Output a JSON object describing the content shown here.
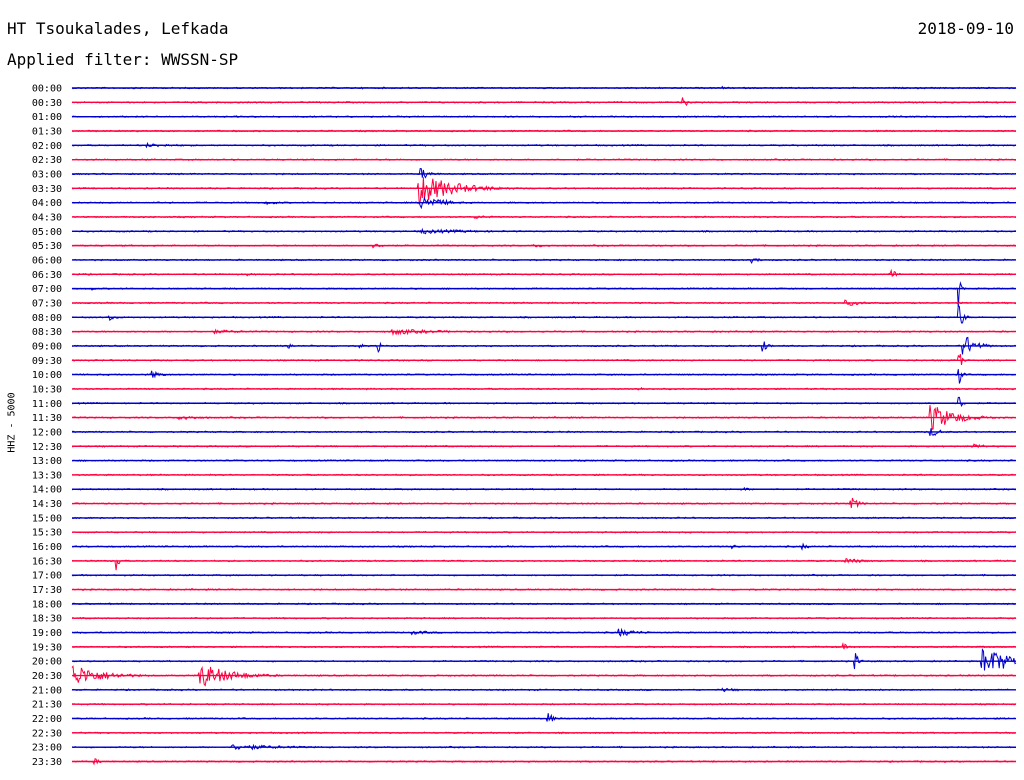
{
  "header": {
    "station": "HT Tsoukalades, Lefkada",
    "date": "2018-09-10",
    "filter": "Applied filter: WWSSN-SP"
  },
  "chart_data": {
    "type": "line",
    "title": "HT Tsoukalades, Lefkada",
    "ylabel": "HHZ - 5000",
    "xlabel": "",
    "colors": {
      "even_rows": "#0000cc",
      "odd_rows": "#ff0040"
    },
    "rows": [
      {
        "label": "00:00",
        "events": [
          {
            "pos": 0.69,
            "amp": 1.5,
            "dur": 0.004
          }
        ]
      },
      {
        "label": "00:30",
        "events": [
          {
            "pos": 0.648,
            "amp": 5,
            "dur": 0.006
          }
        ]
      },
      {
        "label": "01:00",
        "events": []
      },
      {
        "label": "01:30",
        "events": []
      },
      {
        "label": "02:00",
        "events": [
          {
            "pos": 0.08,
            "amp": 2,
            "dur": 0.04
          }
        ]
      },
      {
        "label": "02:30",
        "events": []
      },
      {
        "label": "03:00",
        "events": [
          {
            "pos": 0.37,
            "amp": 6,
            "dur": 0.01
          }
        ]
      },
      {
        "label": "03:30",
        "events": [
          {
            "pos": 0.368,
            "amp": 16,
            "dur": 0.035
          }
        ]
      },
      {
        "label": "04:00",
        "events": [
          {
            "pos": 0.37,
            "amp": 8,
            "dur": 0.02
          },
          {
            "pos": 0.205,
            "amp": 2,
            "dur": 0.02
          }
        ]
      },
      {
        "label": "04:30",
        "events": [
          {
            "pos": 0.425,
            "amp": 2,
            "dur": 0.02
          }
        ]
      },
      {
        "label": "05:00",
        "events": [
          {
            "pos": 0.37,
            "amp": 2.5,
            "dur": 0.06
          }
        ]
      },
      {
        "label": "05:30",
        "events": [
          {
            "pos": 0.32,
            "amp": 2,
            "dur": 0.02
          },
          {
            "pos": 0.49,
            "amp": 1.5,
            "dur": 0.03
          }
        ]
      },
      {
        "label": "06:00",
        "events": [
          {
            "pos": 0.72,
            "amp": 3,
            "dur": 0.01
          }
        ]
      },
      {
        "label": "06:30",
        "events": [
          {
            "pos": 0.867,
            "amp": 6,
            "dur": 0.006
          },
          {
            "pos": 0.185,
            "amp": 1.5,
            "dur": 0.01
          }
        ]
      },
      {
        "label": "07:00",
        "events": [
          {
            "pos": 0.94,
            "amp": 20,
            "dur": 0.002
          },
          {
            "pos": 0.02,
            "amp": 2,
            "dur": 0.005
          }
        ]
      },
      {
        "label": "07:30",
        "events": [
          {
            "pos": 0.82,
            "amp": 3,
            "dur": 0.02
          }
        ]
      },
      {
        "label": "08:00",
        "events": [
          {
            "pos": 0.94,
            "amp": 14,
            "dur": 0.004
          },
          {
            "pos": 0.04,
            "amp": 4,
            "dur": 0.006
          }
        ]
      },
      {
        "label": "08:30",
        "events": [
          {
            "pos": 0.34,
            "amp": 3,
            "dur": 0.05
          },
          {
            "pos": 0.15,
            "amp": 2,
            "dur": 0.04
          }
        ]
      },
      {
        "label": "09:00",
        "events": [
          {
            "pos": 0.945,
            "amp": 12,
            "dur": 0.012
          },
          {
            "pos": 0.228,
            "amp": 8,
            "dur": 0.003
          },
          {
            "pos": 0.732,
            "amp": 7,
            "dur": 0.005
          },
          {
            "pos": 0.325,
            "amp": 6,
            "dur": 0.002
          },
          {
            "pos": 0.305,
            "amp": 3,
            "dur": 0.004
          }
        ]
      },
      {
        "label": "09:30",
        "events": [
          {
            "pos": 0.94,
            "amp": 10,
            "dur": 0.003
          }
        ]
      },
      {
        "label": "10:00",
        "events": [
          {
            "pos": 0.085,
            "amp": 4,
            "dur": 0.01
          },
          {
            "pos": 0.94,
            "amp": 10,
            "dur": 0.003
          }
        ]
      },
      {
        "label": "10:30",
        "events": [
          {
            "pos": 0.6,
            "amp": 2,
            "dur": 0.01
          }
        ]
      },
      {
        "label": "11:00",
        "events": [
          {
            "pos": 0.94,
            "amp": 8,
            "dur": 0.003
          }
        ]
      },
      {
        "label": "11:30",
        "events": [
          {
            "pos": 0.91,
            "amp": 14,
            "dur": 0.025
          },
          {
            "pos": 0.115,
            "amp": 3,
            "dur": 0.02
          }
        ]
      },
      {
        "label": "12:00",
        "events": [
          {
            "pos": 0.91,
            "amp": 5,
            "dur": 0.01
          }
        ]
      },
      {
        "label": "12:30",
        "events": [
          {
            "pos": 0.955,
            "amp": 3,
            "dur": 0.012
          }
        ]
      },
      {
        "label": "13:00",
        "events": []
      },
      {
        "label": "13:30",
        "events": []
      },
      {
        "label": "14:00",
        "events": [
          {
            "pos": 0.71,
            "amp": 2,
            "dur": 0.01
          }
        ]
      },
      {
        "label": "14:30",
        "events": [
          {
            "pos": 0.826,
            "amp": 6,
            "dur": 0.008
          }
        ]
      },
      {
        "label": "15:00",
        "events": []
      },
      {
        "label": "15:30",
        "events": []
      },
      {
        "label": "16:00",
        "events": [
          {
            "pos": 0.7,
            "amp": 2,
            "dur": 0.01
          },
          {
            "pos": 0.775,
            "amp": 3,
            "dur": 0.006
          }
        ]
      },
      {
        "label": "16:30",
        "events": [
          {
            "pos": 0.048,
            "amp": 12,
            "dur": 0.002
          },
          {
            "pos": 0.82,
            "amp": 3,
            "dur": 0.02
          }
        ]
      },
      {
        "label": "17:00",
        "events": []
      },
      {
        "label": "17:30",
        "events": []
      },
      {
        "label": "18:00",
        "events": []
      },
      {
        "label": "18:30",
        "events": []
      },
      {
        "label": "19:00",
        "events": [
          {
            "pos": 0.58,
            "amp": 4,
            "dur": 0.02
          },
          {
            "pos": 0.36,
            "amp": 2,
            "dur": 0.03
          }
        ]
      },
      {
        "label": "19:30",
        "events": [
          {
            "pos": 0.817,
            "amp": 5,
            "dur": 0.003
          }
        ]
      },
      {
        "label": "20:00",
        "events": [
          {
            "pos": 0.83,
            "amp": 8,
            "dur": 0.004
          },
          {
            "pos": 0.965,
            "amp": 14,
            "dur": 0.035
          }
        ]
      },
      {
        "label": "20:30",
        "events": [
          {
            "pos": 0.0,
            "amp": 12,
            "dur": 0.03
          },
          {
            "pos": 0.136,
            "amp": 13,
            "dur": 0.03
          }
        ]
      },
      {
        "label": "21:00",
        "events": [
          {
            "pos": 0.69,
            "amp": 2,
            "dur": 0.02
          }
        ]
      },
      {
        "label": "21:30",
        "events": []
      },
      {
        "label": "22:00",
        "events": [
          {
            "pos": 0.505,
            "amp": 6,
            "dur": 0.005
          }
        ]
      },
      {
        "label": "22:30",
        "events": []
      },
      {
        "label": "23:00",
        "events": [
          {
            "pos": 0.17,
            "amp": 3,
            "dur": 0.06
          }
        ]
      },
      {
        "label": "23:30",
        "events": [
          {
            "pos": 0.025,
            "amp": 3,
            "dur": 0.005
          }
        ]
      }
    ]
  }
}
